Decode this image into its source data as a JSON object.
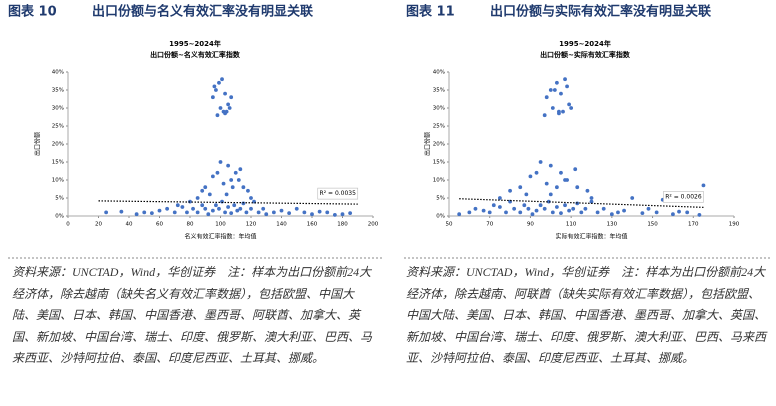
{
  "figures": [
    {
      "label": "图表 10",
      "title": "出口份额与名义有效汇率没有明显关联",
      "source": "资料来源：UNCTAD，Wind，华创证券　注：样本为出口份额前24大经济体，除去越南（缺失名义有效汇率数据），包括欧盟、中国大陆、美国、日本、韩国、中国香港、墨西哥、阿联酋、加拿大、英国、新加坡、中国台湾、瑞士、印度、俄罗斯、澳大利亚、巴西、马来西亚、沙特阿拉伯、泰国、印度尼西亚、土耳其、挪威。"
    },
    {
      "label": "图表 11",
      "title": "出口份额与实际有效汇率没有明显关联",
      "source": "资料来源：UNCTAD，Wind，华创证券　注：样本为出口份额前24大经济体，除去越南、阿联酋（缺失实际有效汇率数据），包括欧盟、中国大陆、美国、日本、韩国、中国香港、墨西哥、加拿大、英国、新加坡、中国台湾、瑞士、印度、俄罗斯、澳大利亚、巴西、马来西亚、沙特阿拉伯、泰国、印度尼西亚、土耳其、挪威。"
    }
  ],
  "chart_data": [
    {
      "type": "scatter",
      "title": "1995~2024年",
      "subtitle": "出口份额~名义有效汇率指数",
      "xlabel": "名义有效汇率指数：年均值",
      "ylabel": "出口份额",
      "color": "#4472c4",
      "x": [
        97,
        99,
        101,
        95,
        103,
        105,
        100,
        102,
        104,
        106,
        98,
        107,
        96,
        103,
        100,
        105,
        110,
        95,
        102,
        108,
        112,
        90,
        98,
        115,
        104,
        118,
        85,
        120,
        93,
        107,
        113,
        88,
        25,
        35,
        45,
        50,
        55,
        60,
        65,
        70,
        72,
        75,
        78,
        80,
        82,
        85,
        88,
        90,
        92,
        95,
        97,
        99,
        101,
        103,
        105,
        107,
        109,
        111,
        113,
        115,
        117,
        120,
        122,
        125,
        128,
        130,
        135,
        140,
        145,
        150,
        155,
        160,
        165,
        170,
        175,
        180,
        185
      ],
      "y": [
        35,
        37,
        38,
        33,
        34,
        31,
        30,
        29,
        29,
        30,
        28,
        33,
        36,
        28.5,
        15,
        14,
        12,
        11,
        9,
        8,
        10,
        8,
        12,
        8,
        6,
        7,
        5,
        5,
        6,
        10,
        13,
        7,
        1,
        1.2,
        0.5,
        1,
        0.8,
        1.5,
        2,
        1,
        3,
        2.5,
        1,
        4,
        2,
        1,
        3,
        2,
        0.5,
        1.5,
        3,
        2,
        4,
        1,
        2.5,
        0.8,
        3,
        1.5,
        2,
        3.5,
        1,
        2,
        4,
        1,
        2,
        0.5,
        1,
        1.5,
        0.8,
        2,
        1,
        0.5,
        1.2,
        1,
        0.3,
        0.5,
        0.8
      ],
      "xlim": [
        0,
        200
      ],
      "xticks": [
        0,
        20,
        40,
        60,
        80,
        100,
        120,
        140,
        160,
        180,
        200
      ],
      "ylim": [
        0,
        40
      ],
      "yticks": [
        {
          "value": 0,
          "label": "0%"
        },
        {
          "value": 5,
          "label": "5%"
        },
        {
          "value": 10,
          "label": "10%"
        },
        {
          "value": 15,
          "label": "15%"
        },
        {
          "value": 20,
          "label": "20%"
        },
        {
          "value": 25,
          "label": "25%"
        },
        {
          "value": 30,
          "label": "30%"
        },
        {
          "value": 35,
          "label": "35%"
        },
        {
          "value": 40,
          "label": "40%"
        }
      ],
      "trend_x": [
        20,
        190
      ],
      "trend_y": [
        4.2,
        3.3
      ],
      "r2_label": "R² = 0.0035"
    },
    {
      "type": "scatter",
      "title": "1995~2024年",
      "subtitle": "出口份额~实际有效汇率指数",
      "xlabel": "实际有效汇率指数：年均值",
      "ylabel": "出口份额",
      "color": "#4472c4",
      "x": [
        100,
        103,
        107,
        98,
        105,
        109,
        101,
        104,
        106,
        110,
        97,
        108,
        102,
        104,
        95,
        100,
        105,
        90,
        98,
        103,
        108,
        85,
        93,
        113,
        100,
        118,
        75,
        120,
        88,
        107,
        112,
        80,
        55,
        60,
        63,
        67,
        70,
        72,
        75,
        78,
        80,
        82,
        85,
        87,
        89,
        91,
        93,
        95,
        97,
        99,
        101,
        103,
        105,
        107,
        109,
        111,
        113,
        115,
        117,
        120,
        123,
        126,
        130,
        133,
        136,
        140,
        145,
        148,
        152,
        155,
        160,
        163,
        167,
        170,
        173,
        175
      ],
      "y": [
        35,
        37,
        38,
        33,
        34,
        31,
        30,
        29,
        29,
        30,
        28,
        36,
        35,
        28.5,
        15,
        14,
        12,
        11,
        9,
        8,
        10,
        8,
        12,
        8,
        6,
        7,
        5,
        5,
        6,
        10,
        13,
        7,
        0.5,
        1,
        2,
        1.5,
        1,
        3,
        2.5,
        1,
        4,
        2,
        1,
        3,
        2,
        0.5,
        1.5,
        3,
        2,
        4,
        1,
        2.5,
        0.8,
        3,
        1.5,
        2,
        3.5,
        1,
        2,
        4,
        1,
        2,
        0.5,
        1,
        1.5,
        5,
        0.8,
        2,
        1,
        4.5,
        0.5,
        1.2,
        1,
        6,
        0.3,
        8.5
      ],
      "xlim": [
        50,
        190
      ],
      "xticks": [
        50,
        70,
        90,
        110,
        130,
        150,
        170,
        190
      ],
      "ylim": [
        0,
        40
      ],
      "yticks": [
        {
          "value": 0,
          "label": "0%"
        },
        {
          "value": 5,
          "label": "5%"
        },
        {
          "value": 10,
          "label": "10%"
        },
        {
          "value": 15,
          "label": "15%"
        },
        {
          "value": 20,
          "label": "20%"
        },
        {
          "value": 25,
          "label": "25%"
        },
        {
          "value": 30,
          "label": "30%"
        },
        {
          "value": 35,
          "label": "35%"
        },
        {
          "value": 40,
          "label": "40%"
        }
      ],
      "trend_x": [
        55,
        175
      ],
      "trend_y": [
        4.8,
        2.4
      ],
      "r2_label": "R² = 0.0026"
    }
  ]
}
